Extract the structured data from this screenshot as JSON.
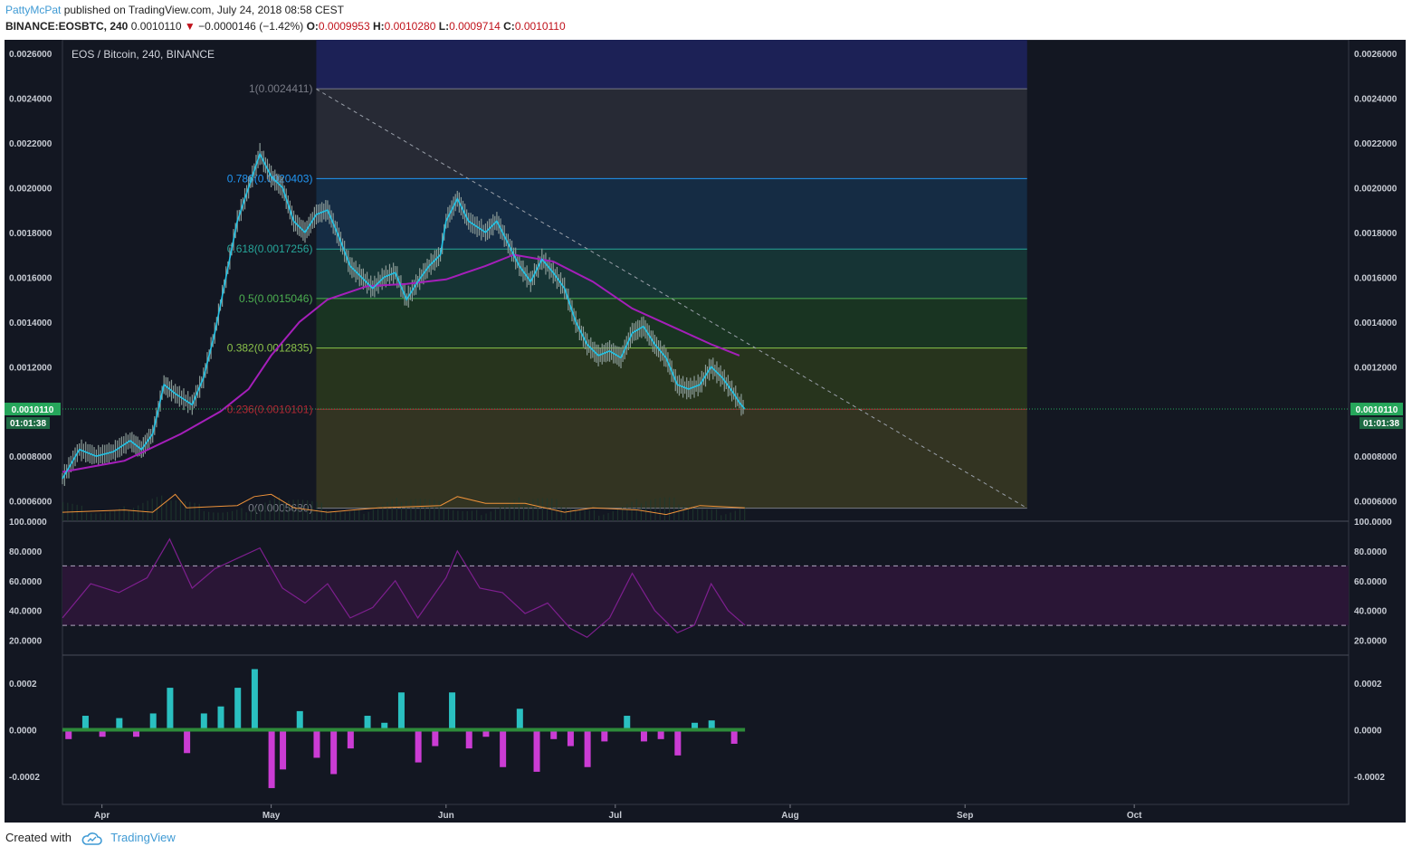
{
  "header": {
    "author": "PattyMcPat",
    "published_text": " published on TradingView.com, July 24, 2018 08:58 CEST",
    "symbol": "BINANCE:EOSBTC, 240",
    "last": "0.0010110",
    "change_arrow": "▼",
    "change": "−0.0000146 (−1.42%)",
    "o_label": "O:",
    "o_value": "0.0009953",
    "h_label": "H:",
    "h_value": "0.0010280",
    "l_label": "L:",
    "l_value": "0.0009714",
    "c_label": "C:",
    "c_value": "0.0010110"
  },
  "footer": {
    "created_with": "Created with",
    "brand": "TradingView"
  },
  "colors": {
    "background": "#131722",
    "candles": "#8a9a96",
    "ema_fast": "#22c3e6",
    "ma_slow": "#a51fba",
    "volume_ma": "#f0933a",
    "rsi": "#7e1f8f",
    "momentum_up": "#2ed3d3",
    "momentum_down": "#e040e8",
    "price_badge": "#26a65b"
  },
  "chart_data": [
    {
      "type": "line",
      "name": "price-pane",
      "title": "EOS / Bitcoin, 240, BINANCE",
      "ylim": [
        0.00051,
        0.00266
      ],
      "y_ticks": [
        "0.0026000",
        "0.0024000",
        "0.0022000",
        "0.0020000",
        "0.0018000",
        "0.0016000",
        "0.0014000",
        "0.0012000",
        "0.0008000",
        "0.0006000"
      ],
      "y_tick_values": [
        0.0026,
        0.0024,
        0.0022,
        0.002,
        0.0018,
        0.0016,
        0.0014,
        0.0012,
        0.0008,
        0.0006
      ],
      "x_ticks": [
        "Apr",
        "May",
        "Jun",
        "Jul",
        "Aug",
        "Sep",
        "Oct"
      ],
      "x_tick_dates": [
        "2018-04-01",
        "2018-05-01",
        "2018-06-01",
        "2018-07-01",
        "2018-08-01",
        "2018-09-01",
        "2018-10-01"
      ],
      "x_range": [
        "2018-03-25",
        "2018-11-08"
      ],
      "last_price": "0.0010110",
      "countdown": "01:01:38",
      "series": [
        {
          "kind": "price",
          "points": [
            [
              "2018-03-25",
              0.0007
            ],
            [
              "2018-03-28",
              0.00083
            ],
            [
              "2018-03-31",
              0.0008
            ],
            [
              "2018-04-03",
              0.00082
            ],
            [
              "2018-04-06",
              0.00087
            ],
            [
              "2018-04-08",
              0.00083
            ],
            [
              "2018-04-10",
              0.0009
            ],
            [
              "2018-04-12",
              0.00112
            ],
            [
              "2018-04-14",
              0.00108
            ],
            [
              "2018-04-17",
              0.00103
            ],
            [
              "2018-04-19",
              0.00115
            ],
            [
              "2018-04-21",
              0.00135
            ],
            [
              "2018-04-23",
              0.0016
            ],
            [
              "2018-04-25",
              0.00185
            ],
            [
              "2018-04-27",
              0.002
            ],
            [
              "2018-04-29",
              0.00215
            ],
            [
              "2018-05-01",
              0.00205
            ],
            [
              "2018-05-03",
              0.002
            ],
            [
              "2018-05-05",
              0.00185
            ],
            [
              "2018-05-07",
              0.0018
            ],
            [
              "2018-05-09",
              0.00188
            ],
            [
              "2018-05-11",
              0.0019
            ],
            [
              "2018-05-13",
              0.00178
            ],
            [
              "2018-05-15",
              0.00165
            ],
            [
              "2018-05-17",
              0.0016
            ],
            [
              "2018-05-19",
              0.00155
            ],
            [
              "2018-05-21",
              0.0016
            ],
            [
              "2018-05-23",
              0.00162
            ],
            [
              "2018-05-25",
              0.0015
            ],
            [
              "2018-05-27",
              0.00158
            ],
            [
              "2018-05-29",
              0.00165
            ],
            [
              "2018-05-31",
              0.0017
            ],
            [
              "2018-06-01",
              0.00185
            ],
            [
              "2018-06-03",
              0.00195
            ],
            [
              "2018-06-05",
              0.00185
            ],
            [
              "2018-06-08",
              0.0018
            ],
            [
              "2018-06-10",
              0.00185
            ],
            [
              "2018-06-12",
              0.00175
            ],
            [
              "2018-06-14",
              0.00165
            ],
            [
              "2018-06-16",
              0.00158
            ],
            [
              "2018-06-18",
              0.00168
            ],
            [
              "2018-06-20",
              0.00162
            ],
            [
              "2018-06-22",
              0.00155
            ],
            [
              "2018-06-24",
              0.0014
            ],
            [
              "2018-06-26",
              0.0013
            ],
            [
              "2018-06-28",
              0.00125
            ],
            [
              "2018-06-30",
              0.00127
            ],
            [
              "2018-07-02",
              0.00124
            ],
            [
              "2018-07-04",
              0.00135
            ],
            [
              "2018-07-06",
              0.00138
            ],
            [
              "2018-07-08",
              0.0013
            ],
            [
              "2018-07-10",
              0.00124
            ],
            [
              "2018-07-12",
              0.00112
            ],
            [
              "2018-07-14",
              0.0011
            ],
            [
              "2018-07-16",
              0.00112
            ],
            [
              "2018-07-18",
              0.0012
            ],
            [
              "2018-07-20",
              0.00115
            ],
            [
              "2018-07-22",
              0.00108
            ],
            [
              "2018-07-23",
              0.00104
            ],
            [
              "2018-07-24",
              0.00101
            ]
          ]
        },
        {
          "kind": "slow_ma",
          "points": [
            [
              "2018-03-25",
              0.00073
            ],
            [
              "2018-04-05",
              0.00078
            ],
            [
              "2018-04-15",
              0.0009
            ],
            [
              "2018-04-22",
              0.001
            ],
            [
              "2018-04-27",
              0.0011
            ],
            [
              "2018-05-01",
              0.00125
            ],
            [
              "2018-05-06",
              0.0014
            ],
            [
              "2018-05-11",
              0.0015
            ],
            [
              "2018-05-18",
              0.00156
            ],
            [
              "2018-05-25",
              0.00157
            ],
            [
              "2018-06-01",
              0.00159
            ],
            [
              "2018-06-08",
              0.00165
            ],
            [
              "2018-06-13",
              0.0017
            ],
            [
              "2018-06-20",
              0.00167
            ],
            [
              "2018-06-27",
              0.00158
            ],
            [
              "2018-07-04",
              0.00146
            ],
            [
              "2018-07-11",
              0.00138
            ],
            [
              "2018-07-18",
              0.0013
            ],
            [
              "2018-07-23",
              0.00125
            ]
          ]
        },
        {
          "kind": "volume_ma",
          "points": [
            [
              "2018-03-25",
              0.00055
            ],
            [
              "2018-04-05",
              0.00056
            ],
            [
              "2018-04-10",
              0.00055
            ],
            [
              "2018-04-14",
              0.00063
            ],
            [
              "2018-04-16",
              0.00057
            ],
            [
              "2018-04-25",
              0.00058
            ],
            [
              "2018-04-28",
              0.00062
            ],
            [
              "2018-05-01",
              0.00063
            ],
            [
              "2018-05-05",
              0.00057
            ],
            [
              "2018-05-11",
              0.00055
            ],
            [
              "2018-05-20",
              0.00057
            ],
            [
              "2018-05-31",
              0.00058
            ],
            [
              "2018-06-03",
              0.00062
            ],
            [
              "2018-06-08",
              0.00059
            ],
            [
              "2018-06-15",
              0.00059
            ],
            [
              "2018-06-22",
              0.00055
            ],
            [
              "2018-06-27",
              0.00057
            ],
            [
              "2018-07-05",
              0.00056
            ],
            [
              "2018-07-10",
              0.00054
            ],
            [
              "2018-07-16",
              0.00058
            ],
            [
              "2018-07-24",
              0.00057
            ]
          ]
        }
      ],
      "fibonacci": {
        "start": "2018-05-09",
        "end": "2018-09-12",
        "levels": [
          {
            "label": "1(0.0024411)",
            "value": 0.0024411,
            "color": "#787b86"
          },
          {
            "label": "0.786(0.0020403)",
            "value": 0.0020403,
            "color": "#2196f3"
          },
          {
            "label": "0.618(0.0017256)",
            "value": 0.0017256,
            "color": "#26a69a"
          },
          {
            "label": "0.5(0.0015046)",
            "value": 0.0015046,
            "color": "#4caf50"
          },
          {
            "label": "0.382(0.0012835)",
            "value": 0.0012835,
            "color": "#8bc34a"
          },
          {
            "label": "0.236(0.0010101)",
            "value": 0.0010101,
            "color": "#b22833"
          },
          {
            "label": "0(0.0005680)",
            "value": 0.000568,
            "color": "#787b86"
          }
        ]
      },
      "trendline": {
        "from": [
          "2018-05-09",
          0.00244
        ],
        "to": [
          "2018-09-12",
          0.000568
        ]
      }
    },
    {
      "type": "line",
      "name": "rsi-pane",
      "ylim": [
        10,
        100
      ],
      "y_ticks": [
        "100.0000",
        "80.0000",
        "60.0000",
        "40.0000",
        "20.0000"
      ],
      "y_tick_values": [
        100,
        80,
        60,
        40,
        20
      ],
      "bands": [
        70,
        30
      ],
      "points": [
        [
          "2018-03-25",
          35
        ],
        [
          "2018-03-30",
          58
        ],
        [
          "2018-04-04",
          52
        ],
        [
          "2018-04-09",
          62
        ],
        [
          "2018-04-13",
          88
        ],
        [
          "2018-04-17",
          55
        ],
        [
          "2018-04-21",
          68
        ],
        [
          "2018-04-25",
          75
        ],
        [
          "2018-04-29",
          82
        ],
        [
          "2018-05-03",
          55
        ],
        [
          "2018-05-07",
          45
        ],
        [
          "2018-05-11",
          58
        ],
        [
          "2018-05-15",
          35
        ],
        [
          "2018-05-19",
          42
        ],
        [
          "2018-05-23",
          60
        ],
        [
          "2018-05-27",
          35
        ],
        [
          "2018-06-01",
          62
        ],
        [
          "2018-06-03",
          80
        ],
        [
          "2018-06-07",
          55
        ],
        [
          "2018-06-11",
          52
        ],
        [
          "2018-06-15",
          38
        ],
        [
          "2018-06-19",
          45
        ],
        [
          "2018-06-23",
          28
        ],
        [
          "2018-06-26",
          22
        ],
        [
          "2018-06-30",
          35
        ],
        [
          "2018-07-04",
          65
        ],
        [
          "2018-07-08",
          40
        ],
        [
          "2018-07-12",
          25
        ],
        [
          "2018-07-15",
          30
        ],
        [
          "2018-07-18",
          58
        ],
        [
          "2018-07-21",
          40
        ],
        [
          "2018-07-24",
          30
        ]
      ]
    },
    {
      "type": "bar",
      "name": "momentum-pane",
      "ylim": [
        -0.00032,
        0.00032
      ],
      "y_ticks": [
        "0.0002",
        "0.0000",
        "-0.0002"
      ],
      "y_tick_values": [
        0.0002,
        0.0,
        -0.0002
      ],
      "values": [
        [
          "2018-03-26",
          -4e-05
        ],
        [
          "2018-03-29",
          6e-05
        ],
        [
          "2018-04-01",
          -3e-05
        ],
        [
          "2018-04-04",
          5e-05
        ],
        [
          "2018-04-07",
          -3e-05
        ],
        [
          "2018-04-10",
          7e-05
        ],
        [
          "2018-04-13",
          0.00018
        ],
        [
          "2018-04-16",
          -0.0001
        ],
        [
          "2018-04-19",
          7e-05
        ],
        [
          "2018-04-22",
          0.0001
        ],
        [
          "2018-04-25",
          0.00018
        ],
        [
          "2018-04-28",
          0.00026
        ],
        [
          "2018-05-01",
          -0.00025
        ],
        [
          "2018-05-03",
          -0.00017
        ],
        [
          "2018-05-06",
          8e-05
        ],
        [
          "2018-05-09",
          -0.00012
        ],
        [
          "2018-05-12",
          -0.00019
        ],
        [
          "2018-05-15",
          -8e-05
        ],
        [
          "2018-05-18",
          6e-05
        ],
        [
          "2018-05-21",
          3e-05
        ],
        [
          "2018-05-24",
          0.00016
        ],
        [
          "2018-05-27",
          -0.00014
        ],
        [
          "2018-05-30",
          -7e-05
        ],
        [
          "2018-06-02",
          0.00016
        ],
        [
          "2018-06-05",
          -8e-05
        ],
        [
          "2018-06-08",
          -3e-05
        ],
        [
          "2018-06-11",
          -0.00016
        ],
        [
          "2018-06-14",
          9e-05
        ],
        [
          "2018-06-17",
          -0.00018
        ],
        [
          "2018-06-20",
          -4e-05
        ],
        [
          "2018-06-23",
          -7e-05
        ],
        [
          "2018-06-26",
          -0.00016
        ],
        [
          "2018-06-29",
          -5e-05
        ],
        [
          "2018-07-03",
          6e-05
        ],
        [
          "2018-07-06",
          -5e-05
        ],
        [
          "2018-07-09",
          -4e-05
        ],
        [
          "2018-07-12",
          -0.00011
        ],
        [
          "2018-07-15",
          3e-05
        ],
        [
          "2018-07-18",
          4e-05
        ],
        [
          "2018-07-22",
          -6e-05
        ]
      ]
    }
  ]
}
